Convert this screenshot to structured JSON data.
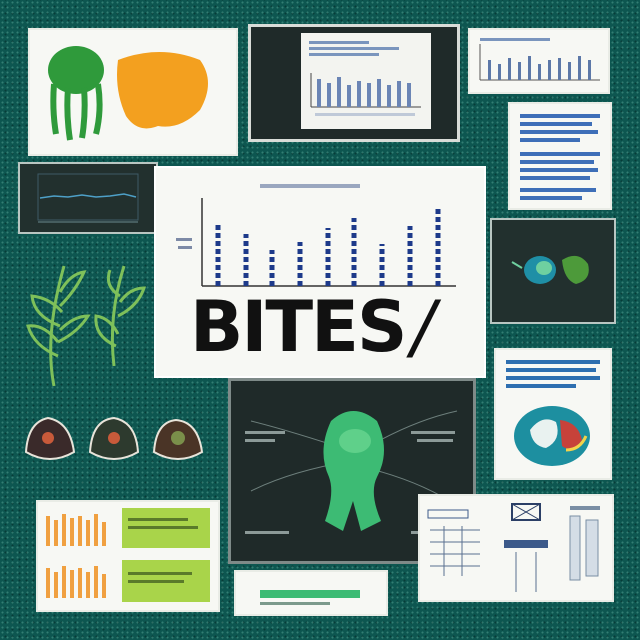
{
  "poster": {
    "title": "BITES",
    "title_mark": "/"
  },
  "colors": {
    "background": "#0d5650",
    "bar_blue": "#1d3a8a",
    "leaf_green": "#5b9e3c",
    "bug_green": "#3dbb74",
    "orange": "#f3a01f"
  }
}
